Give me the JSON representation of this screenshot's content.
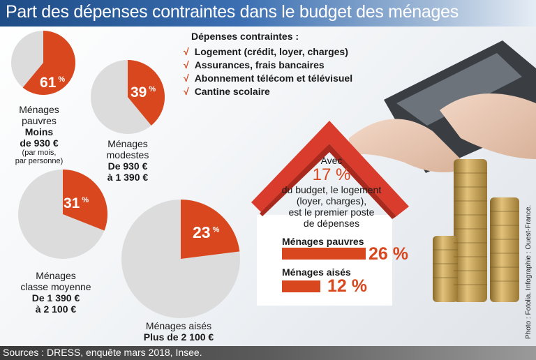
{
  "title": "Part des dépenses contraintes dans le budget des ménages",
  "legend": {
    "title": "Dépenses contraintes :",
    "items": [
      "Logement (crédit, loyer, charges)",
      "Assurances, frais bancaires",
      "Abonnement télécom et télévisuel",
      "Cantine scolaire"
    ]
  },
  "colors": {
    "accent": "#d9471f",
    "pie_rest": "#dcdcdc",
    "title_bar": "#2a5a99",
    "roof": "#d93c2c"
  },
  "chart_data": [
    {
      "type": "pie",
      "slices": [
        {
          "label": "Ménages pauvres",
          "value": 61
        },
        {
          "label": "Ménages modestes",
          "value": 39
        },
        {
          "label": "Ménages classe moyenne",
          "value": 31
        },
        {
          "label": "Ménages aisés",
          "value": 23
        }
      ],
      "unit": "%"
    },
    {
      "type": "bar",
      "categories": [
        "Ménages pauvres",
        "Ménages aisés"
      ],
      "values": [
        26,
        12
      ],
      "unit": "%"
    }
  ],
  "groups": [
    {
      "name_line1": "Ménages",
      "name_line2": "pauvres",
      "range_line1": "Moins",
      "range_line2": "de 930 €",
      "note_line1": "(par mois,",
      "note_line2": "par personne)"
    },
    {
      "name_line1": "Ménages",
      "name_line2": "modestes",
      "range_line1": "De 930 €",
      "range_line2": "à 1 390 €"
    },
    {
      "name_line1": "Ménages",
      "name_line2": "classe moyenne",
      "range_line1": "De 1 390 €",
      "range_line2": "à 2 100 €"
    },
    {
      "name_line1": "Ménages aisés",
      "range_line1": "Plus de 2 100 €"
    }
  ],
  "house": {
    "intro": "Avec",
    "highlight": "17 %",
    "line1": "du budget, le logement",
    "line2": "(loyer, charges),",
    "line3": "est le premier poste",
    "line4": "de dépenses"
  },
  "source": "Sources : DRESS, enquête mars 2018, Insee.",
  "credit": "Photo : Fotolia. Infographie : Ouest-France."
}
